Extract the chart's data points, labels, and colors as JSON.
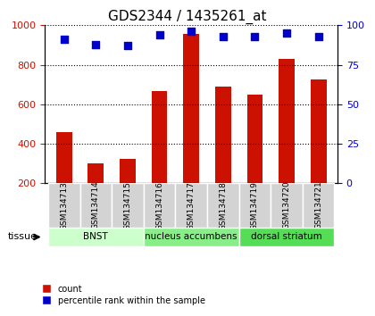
{
  "title": "GDS2344 / 1435261_at",
  "samples": [
    "GSM134713",
    "GSM134714",
    "GSM134715",
    "GSM134716",
    "GSM134717",
    "GSM134718",
    "GSM134719",
    "GSM134720",
    "GSM134721"
  ],
  "counts": [
    460,
    300,
    325,
    665,
    955,
    688,
    648,
    830,
    725
  ],
  "percentiles": [
    91,
    88,
    87,
    94,
    96,
    93,
    93,
    95,
    93
  ],
  "groups": [
    {
      "label": "BNST",
      "start": 0,
      "end": 3,
      "color": "#ccffcc"
    },
    {
      "label": "nucleus accumbens",
      "start": 3,
      "end": 6,
      "color": "#88ee88"
    },
    {
      "label": "dorsal striatum",
      "start": 6,
      "end": 9,
      "color": "#55dd55"
    }
  ],
  "bar_color": "#cc1100",
  "dot_color": "#0000cc",
  "ylim_left": [
    200,
    1000
  ],
  "ylim_right": [
    0,
    100
  ],
  "yticks_left": [
    200,
    400,
    600,
    800,
    1000
  ],
  "yticks_right": [
    0,
    25,
    50,
    75,
    100
  ],
  "grid_color": "black",
  "bg_color": "#ffffff",
  "plot_bg": "#ffffff",
  "tissue_label": "tissue",
  "legend_count": "count",
  "legend_pct": "percentile rank within the sample"
}
